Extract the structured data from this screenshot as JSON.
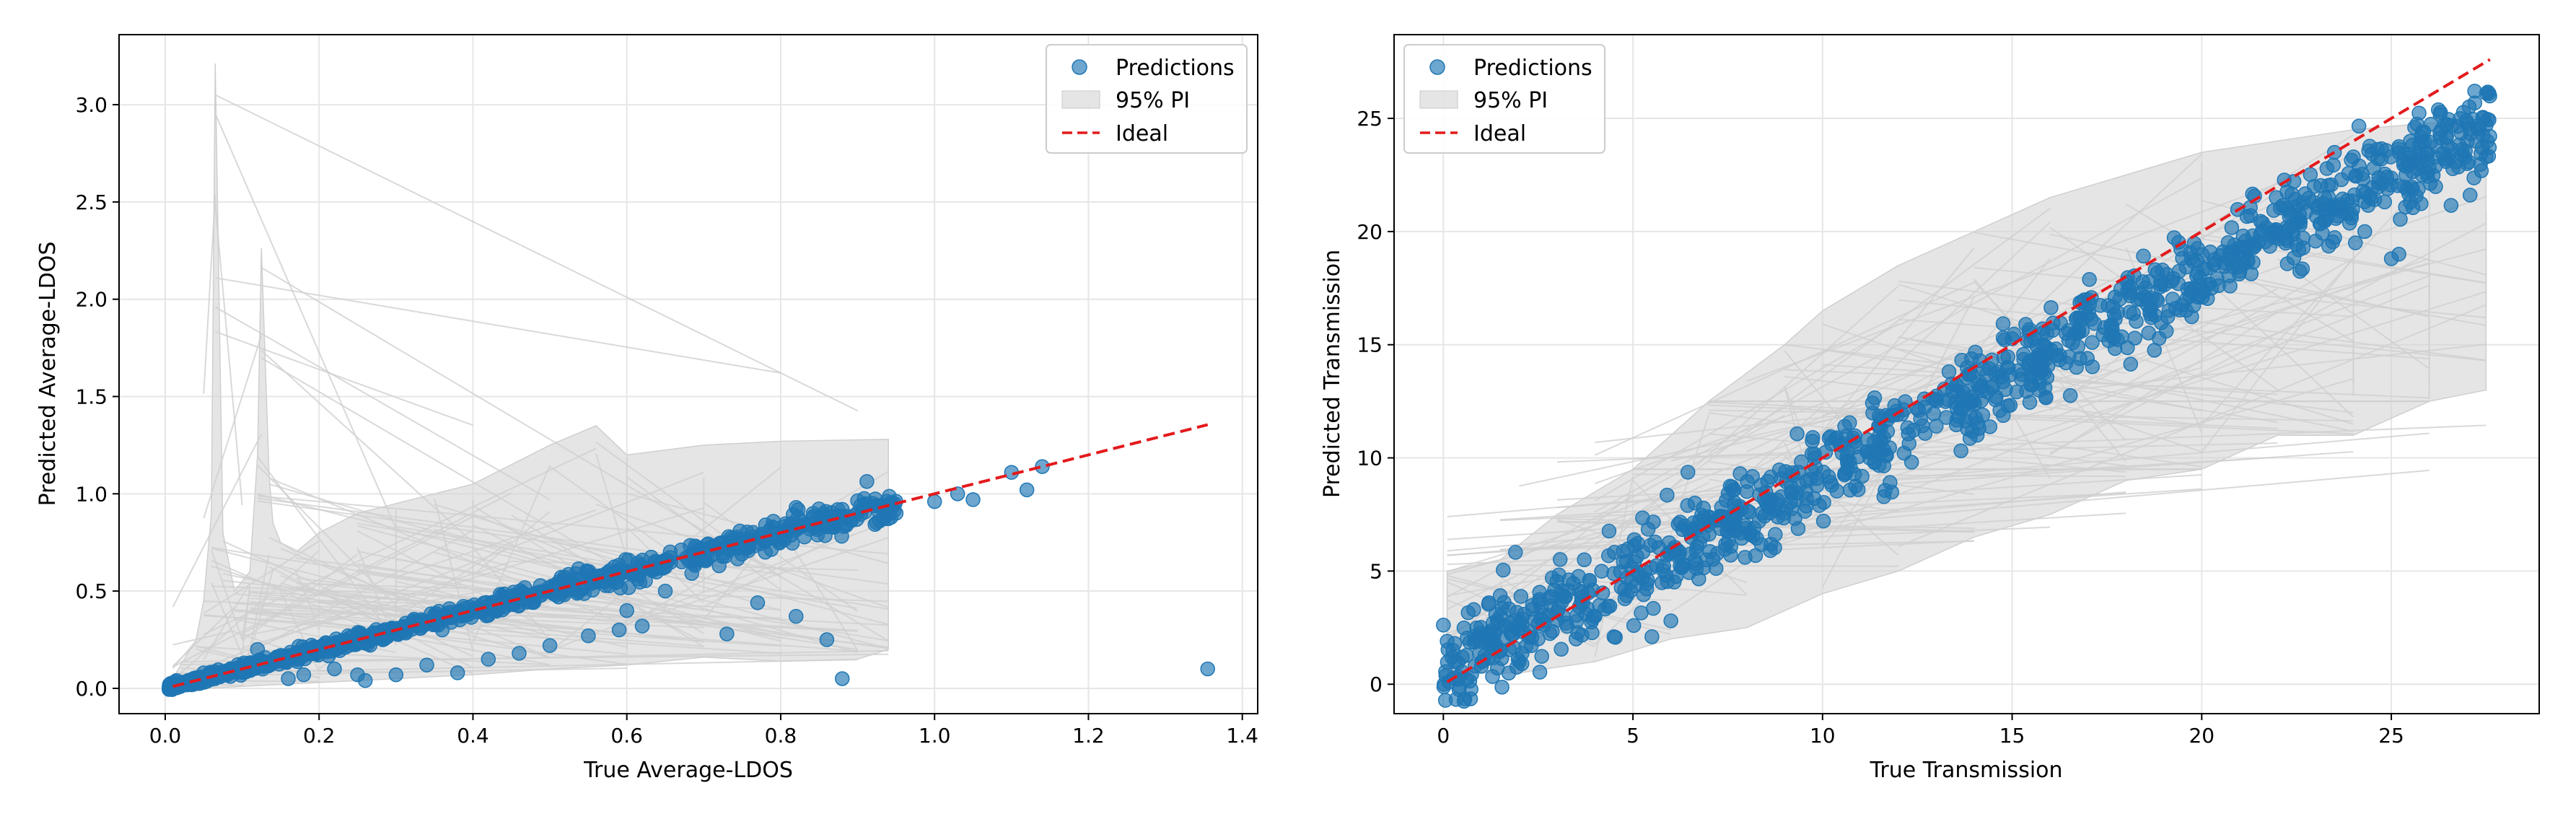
{
  "figure": {
    "background": "#ffffff"
  },
  "colors": {
    "points": "#1f77b4",
    "pi_band": "#d3d3d3",
    "ideal": "#e31a1c",
    "grid": "#e6e6e6",
    "axis": "#000000"
  },
  "chart_data": [
    {
      "type": "scatter",
      "title": "",
      "xlabel": "True Average-LDOS",
      "ylabel": "Predicted Average-LDOS",
      "xlim": [
        -0.06,
        1.42
      ],
      "ylim": [
        -0.13,
        3.36
      ],
      "xticks": [
        0.0,
        0.2,
        0.4,
        0.6,
        0.8,
        1.0,
        1.2,
        1.4
      ],
      "xtick_labels": [
        "0.0",
        "0.2",
        "0.4",
        "0.6",
        "0.8",
        "1.0",
        "1.2",
        "1.4"
      ],
      "yticks": [
        0.0,
        0.5,
        1.0,
        1.5,
        2.0,
        2.5,
        3.0
      ],
      "ytick_labels": [
        "0.0",
        "0.5",
        "1.0",
        "1.5",
        "2.0",
        "2.5",
        "3.0"
      ],
      "grid": true,
      "legend": {
        "placement": "top-right",
        "entries": [
          {
            "label": "Predictions",
            "kind": "marker"
          },
          {
            "label": "95% PI",
            "kind": "patch"
          },
          {
            "label": "Ideal",
            "kind": "dashed-line"
          }
        ]
      },
      "ideal_line": {
        "x": [
          0.01,
          1.355
        ],
        "y": [
          0.01,
          1.355
        ]
      },
      "pi_band": {
        "upper": [
          [
            0.01,
            0.05
          ],
          [
            0.02,
            0.12
          ],
          [
            0.04,
            0.25
          ],
          [
            0.05,
            0.45
          ],
          [
            0.06,
            0.9
          ],
          [
            0.065,
            3.21
          ],
          [
            0.075,
            0.8
          ],
          [
            0.09,
            0.5
          ],
          [
            0.11,
            0.6
          ],
          [
            0.12,
            1.2
          ],
          [
            0.125,
            2.26
          ],
          [
            0.135,
            1.1
          ],
          [
            0.14,
            0.85
          ],
          [
            0.15,
            0.75
          ],
          [
            0.17,
            0.7
          ],
          [
            0.2,
            0.8
          ],
          [
            0.25,
            0.9
          ],
          [
            0.3,
            0.95
          ],
          [
            0.35,
            1.0
          ],
          [
            0.4,
            1.05
          ],
          [
            0.45,
            1.15
          ],
          [
            0.5,
            1.25
          ],
          [
            0.56,
            1.35
          ],
          [
            0.6,
            1.2
          ],
          [
            0.7,
            1.25
          ],
          [
            0.8,
            1.27
          ],
          [
            0.94,
            1.28
          ]
        ],
        "lower": [
          [
            0.94,
            0.2
          ],
          [
            0.9,
            0.15
          ],
          [
            0.8,
            0.14
          ],
          [
            0.7,
            0.16
          ],
          [
            0.6,
            0.12
          ],
          [
            0.5,
            0.1
          ],
          [
            0.4,
            0.07
          ],
          [
            0.3,
            0.05
          ],
          [
            0.2,
            0.03
          ],
          [
            0.1,
            0.01
          ],
          [
            0.05,
            0.0
          ],
          [
            0.01,
            -0.01
          ]
        ]
      },
      "series": [
        {
          "name": "Predictions",
          "generator": {
            "n": 950,
            "seed": 7,
            "x_range": [
              0.005,
              0.95
            ],
            "skew": 1.6,
            "slope": 1.0,
            "noise": 0.03,
            "noise_scale": 0.06
          },
          "points": [
            [
              0.02,
              0.01
            ],
            [
              0.03,
              0.04
            ],
            [
              0.05,
              0.08
            ],
            [
              0.08,
              0.09
            ],
            [
              0.12,
              0.2
            ],
            [
              0.18,
              0.07
            ],
            [
              0.22,
              0.1
            ],
            [
              0.26,
              0.04
            ],
            [
              0.3,
              0.07
            ],
            [
              0.34,
              0.12
            ],
            [
              0.38,
              0.08
            ],
            [
              0.42,
              0.15
            ],
            [
              0.46,
              0.18
            ],
            [
              0.5,
              0.22
            ],
            [
              0.55,
              0.27
            ],
            [
              0.6,
              0.4
            ],
            [
              0.65,
              0.5
            ],
            [
              0.72,
              0.63
            ],
            [
              0.78,
              0.7
            ],
            [
              0.82,
              0.93
            ],
            [
              0.85,
              0.88
            ],
            [
              0.88,
              0.92
            ],
            [
              0.92,
              0.95
            ],
            [
              0.95,
              0.9
            ],
            [
              1.0,
              0.96
            ],
            [
              1.03,
              1.0
            ],
            [
              1.05,
              0.97
            ],
            [
              1.1,
              1.11
            ],
            [
              1.12,
              1.02
            ],
            [
              1.14,
              1.14
            ],
            [
              0.88,
              0.05
            ],
            [
              0.82,
              0.37
            ],
            [
              0.86,
              0.25
            ],
            [
              0.77,
              0.44
            ],
            [
              0.73,
              0.28
            ],
            [
              0.62,
              0.32
            ],
            [
              0.59,
              0.3
            ],
            [
              0.36,
              0.3
            ],
            [
              0.25,
              0.07
            ],
            [
              0.16,
              0.05
            ],
            [
              1.355,
              0.1
            ]
          ]
        }
      ]
    },
    {
      "type": "scatter",
      "title": "",
      "xlabel": "True Transmission",
      "ylabel": "Predicted Transmission",
      "xlim": [
        -1.3,
        28.9
      ],
      "ylim": [
        -1.3,
        28.7
      ],
      "xticks": [
        0,
        5,
        10,
        15,
        20,
        25
      ],
      "xtick_labels": [
        "0",
        "5",
        "10",
        "15",
        "20",
        "25"
      ],
      "yticks": [
        0,
        5,
        10,
        15,
        20,
        25
      ],
      "ytick_labels": [
        "0",
        "5",
        "10",
        "15",
        "20",
        "25"
      ],
      "grid": true,
      "legend": {
        "placement": "top-left",
        "entries": [
          {
            "label": "Predictions",
            "kind": "marker"
          },
          {
            "label": "95% PI",
            "kind": "patch"
          },
          {
            "label": "Ideal",
            "kind": "dashed-line"
          }
        ]
      },
      "ideal_line": {
        "x": [
          0.1,
          27.6
        ],
        "y": [
          0.1,
          27.6
        ]
      },
      "pi_band": {
        "upper": [
          [
            0.1,
            5.0
          ],
          [
            1.5,
            5.5
          ],
          [
            3,
            7.5
          ],
          [
            5,
            9.5
          ],
          [
            7,
            12.5
          ],
          [
            9,
            15.0
          ],
          [
            10,
            16.5
          ],
          [
            12,
            18.5
          ],
          [
            14,
            20.0
          ],
          [
            16,
            21.5
          ],
          [
            18,
            22.5
          ],
          [
            20,
            23.5
          ],
          [
            22,
            24.0
          ],
          [
            24,
            24.5
          ],
          [
            26,
            24.8
          ],
          [
            27.5,
            24.8
          ]
        ],
        "lower": [
          [
            27.5,
            13.0
          ],
          [
            26,
            12.5
          ],
          [
            24,
            11.0
          ],
          [
            22,
            11.0
          ],
          [
            20,
            9.5
          ],
          [
            18,
            9.0
          ],
          [
            16,
            7.5
          ],
          [
            14,
            6.5
          ],
          [
            12,
            5.0
          ],
          [
            10,
            4.0
          ],
          [
            8,
            2.5
          ],
          [
            6,
            2.0
          ],
          [
            4,
            1.0
          ],
          [
            2,
            0.5
          ],
          [
            0.1,
            0.5
          ]
        ]
      },
      "series": [
        {
          "name": "Predictions",
          "generator": {
            "n": 1100,
            "seed": 11,
            "x_range": [
              0.0,
              27.6
            ],
            "skew": 1.0,
            "slope": 0.88,
            "offset": 0.6,
            "noise": 1.0,
            "noise_scale": 0.0
          },
          "points": [
            [
              0.1,
              1.9
            ],
            [
              0.3,
              1.8
            ],
            [
              0.5,
              1.2
            ],
            [
              0.8,
              3.3
            ],
            [
              1.2,
              3.6
            ],
            [
              1.5,
              3.0
            ],
            [
              1.8,
              2.2
            ],
            [
              2.0,
              1.0
            ],
            [
              2.5,
              2.0
            ],
            [
              3.0,
              3.2
            ],
            [
              3.5,
              2.0
            ],
            [
              4.0,
              3.0
            ],
            [
              4.5,
              2.1
            ],
            [
              5.5,
              2.1
            ],
            [
              6.0,
              2.8
            ],
            [
              23.5,
              23.5
            ],
            [
              24.0,
              23.3
            ],
            [
              25.2,
              19.0
            ],
            [
              25.5,
              21.3
            ],
            [
              26.0,
              22.8
            ],
            [
              26.5,
              23.2
            ],
            [
              27.0,
              23.0
            ],
            [
              27.5,
              23.3
            ],
            [
              25.0,
              18.8
            ],
            [
              24.3,
              20.0
            ]
          ]
        }
      ]
    }
  ]
}
